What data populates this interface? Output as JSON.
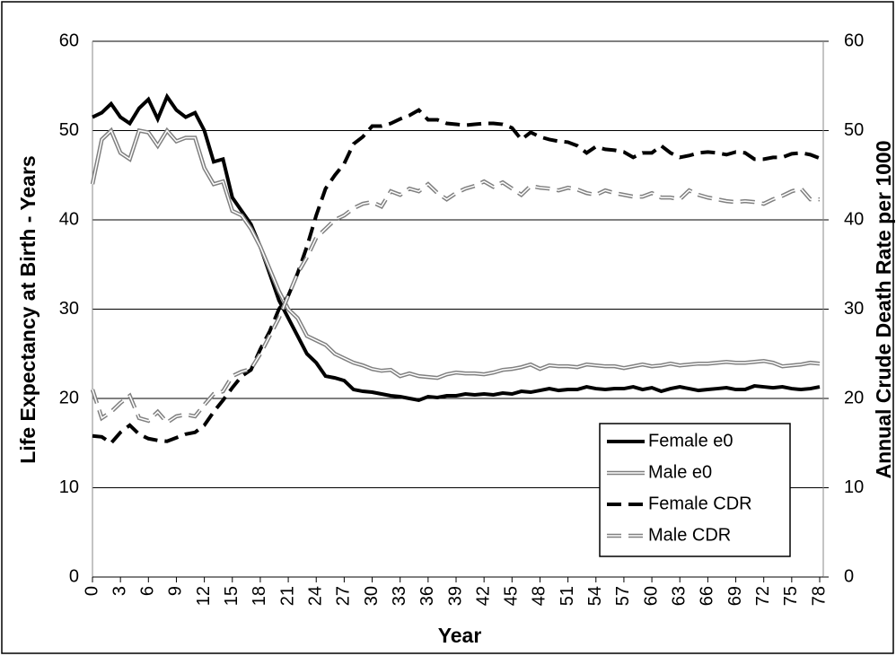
{
  "chart_data": {
    "type": "line",
    "x_label": "Year",
    "y_label": "Life Expectancy at Birth - Years",
    "y2_label": "Annual Crude Death Rate per 1000",
    "x": [
      0,
      1,
      2,
      3,
      4,
      5,
      6,
      7,
      8,
      9,
      10,
      11,
      12,
      13,
      14,
      15,
      16,
      17,
      18,
      19,
      20,
      21,
      22,
      23,
      24,
      25,
      26,
      27,
      28,
      29,
      30,
      31,
      32,
      33,
      34,
      35,
      36,
      37,
      38,
      39,
      40,
      41,
      42,
      43,
      44,
      45,
      46,
      47,
      48,
      49,
      50,
      51,
      52,
      53,
      54,
      55,
      56,
      57,
      58,
      59,
      60,
      61,
      62,
      63,
      64,
      65,
      66,
      67,
      68,
      69,
      70,
      71,
      72,
      73,
      74,
      75,
      76,
      77,
      78
    ],
    "xlim": [
      0,
      78
    ],
    "xticks": [
      0,
      3,
      6,
      9,
      12,
      15,
      18,
      21,
      24,
      27,
      30,
      33,
      36,
      39,
      42,
      45,
      48,
      51,
      54,
      57,
      60,
      63,
      66,
      69,
      72,
      75,
      78
    ],
    "ylim": [
      0,
      60
    ],
    "yticks": [
      0,
      10,
      20,
      30,
      40,
      50,
      60
    ],
    "y2lim": [
      0,
      60
    ],
    "y2ticks": [
      0,
      10,
      20,
      30,
      40,
      50,
      60
    ],
    "grid": true,
    "legend": "lower right",
    "series": [
      {
        "name": "Female e0",
        "color": "#000000",
        "line_style": "solid",
        "double": false,
        "values": [
          51.5,
          52,
          53,
          51.5,
          50.8,
          52.5,
          53.5,
          51.3,
          53.8,
          52.3,
          51.5,
          52,
          50,
          46.5,
          46.8,
          42.5,
          41,
          39.5,
          37,
          34,
          31,
          29,
          27,
          25,
          24,
          22.5,
          22.3,
          22,
          21,
          20.8,
          20.7,
          20.5,
          20.3,
          20.2,
          20,
          19.8,
          20.2,
          20.1,
          20.3,
          20.3,
          20.5,
          20.4,
          20.5,
          20.4,
          20.6,
          20.5,
          20.8,
          20.7,
          20.9,
          21.1,
          20.9,
          21,
          21,
          21.3,
          21.1,
          21,
          21.1,
          21.1,
          21.3,
          21,
          21.2,
          20.8,
          21.1,
          21.3,
          21.1,
          20.9,
          21,
          21.1,
          21.2,
          21,
          21,
          21.4,
          21.3,
          21.2,
          21.3,
          21.1,
          21,
          21.1,
          21.3
        ]
      },
      {
        "name": "Male e0",
        "color": "#808080",
        "line_style": "solid",
        "double": true,
        "values": [
          44,
          49,
          50,
          47.5,
          46.8,
          50,
          49.8,
          48.3,
          50,
          48.8,
          49.2,
          49.2,
          45.8,
          44,
          44.3,
          41,
          40.5,
          39,
          37,
          34.5,
          32,
          30,
          29,
          27,
          26.5,
          26,
          25,
          24.5,
          24,
          23.7,
          23.3,
          23.1,
          23.2,
          22.5,
          22.8,
          22.5,
          22.4,
          22.3,
          22.7,
          22.9,
          22.8,
          22.8,
          22.7,
          22.9,
          23.2,
          23.3,
          23.5,
          23.8,
          23.3,
          23.7,
          23.6,
          23.6,
          23.5,
          23.8,
          23.7,
          23.6,
          23.6,
          23.4,
          23.6,
          23.8,
          23.6,
          23.7,
          23.9,
          23.7,
          23.8,
          23.9,
          23.9,
          24,
          24.1,
          24,
          24,
          24.1,
          24.2,
          24,
          23.6,
          23.7,
          23.8,
          24,
          23.9
        ]
      },
      {
        "name": "Female CDR",
        "color": "#000000",
        "line_style": "dashed",
        "double": false,
        "axis": "y2",
        "values": [
          15.8,
          15.7,
          15,
          16.2,
          17,
          16,
          15.5,
          15.3,
          15.2,
          15.6,
          16,
          16.2,
          17,
          18.5,
          19.8,
          21.2,
          22.5,
          23.2,
          25.5,
          27.5,
          30,
          31.5,
          34,
          37,
          40.5,
          43.5,
          45,
          46.3,
          48.5,
          49.3,
          50.5,
          50.5,
          50.8,
          51.3,
          51.7,
          52.3,
          51.2,
          51.2,
          50.8,
          50.7,
          50.6,
          50.7,
          50.8,
          50.8,
          50.7,
          50.3,
          49,
          49.8,
          49.3,
          49,
          48.8,
          48.7,
          48.3,
          47.5,
          48.2,
          47.9,
          47.8,
          47.6,
          47,
          47.5,
          47.5,
          48.3,
          47.5,
          47,
          47.2,
          47.5,
          47.6,
          47.5,
          47.3,
          47.6,
          47.5,
          46.8,
          46.8,
          47,
          47,
          47.4,
          47.5,
          47.3,
          46.9
        ]
      },
      {
        "name": "Male CDR",
        "color": "#808080",
        "line_style": "dashed",
        "double": true,
        "axis": "y2",
        "values": [
          21,
          17.8,
          18.5,
          19.5,
          20.3,
          17.8,
          17.5,
          18.5,
          17.3,
          18,
          18.2,
          18,
          19.3,
          20.5,
          20.8,
          22.5,
          23,
          23.3,
          25,
          27,
          29,
          31.5,
          34,
          35.8,
          38,
          39,
          40,
          40.5,
          41.3,
          41.8,
          42,
          41.5,
          43.2,
          42.8,
          43.5,
          43.2,
          44,
          43,
          42.3,
          43,
          43.5,
          43.8,
          44.3,
          43.7,
          44.2,
          43.5,
          42.8,
          43.8,
          43.6,
          43.5,
          43.3,
          43.6,
          43.4,
          43,
          42.8,
          43.3,
          43,
          42.8,
          42.6,
          42.6,
          43,
          42.5,
          42.5,
          42.3,
          43.3,
          42.8,
          42.5,
          42.3,
          42.1,
          42,
          42.1,
          42,
          41.8,
          42.3,
          42.7,
          43.2,
          43.5,
          42.3,
          42.3
        ]
      }
    ]
  }
}
